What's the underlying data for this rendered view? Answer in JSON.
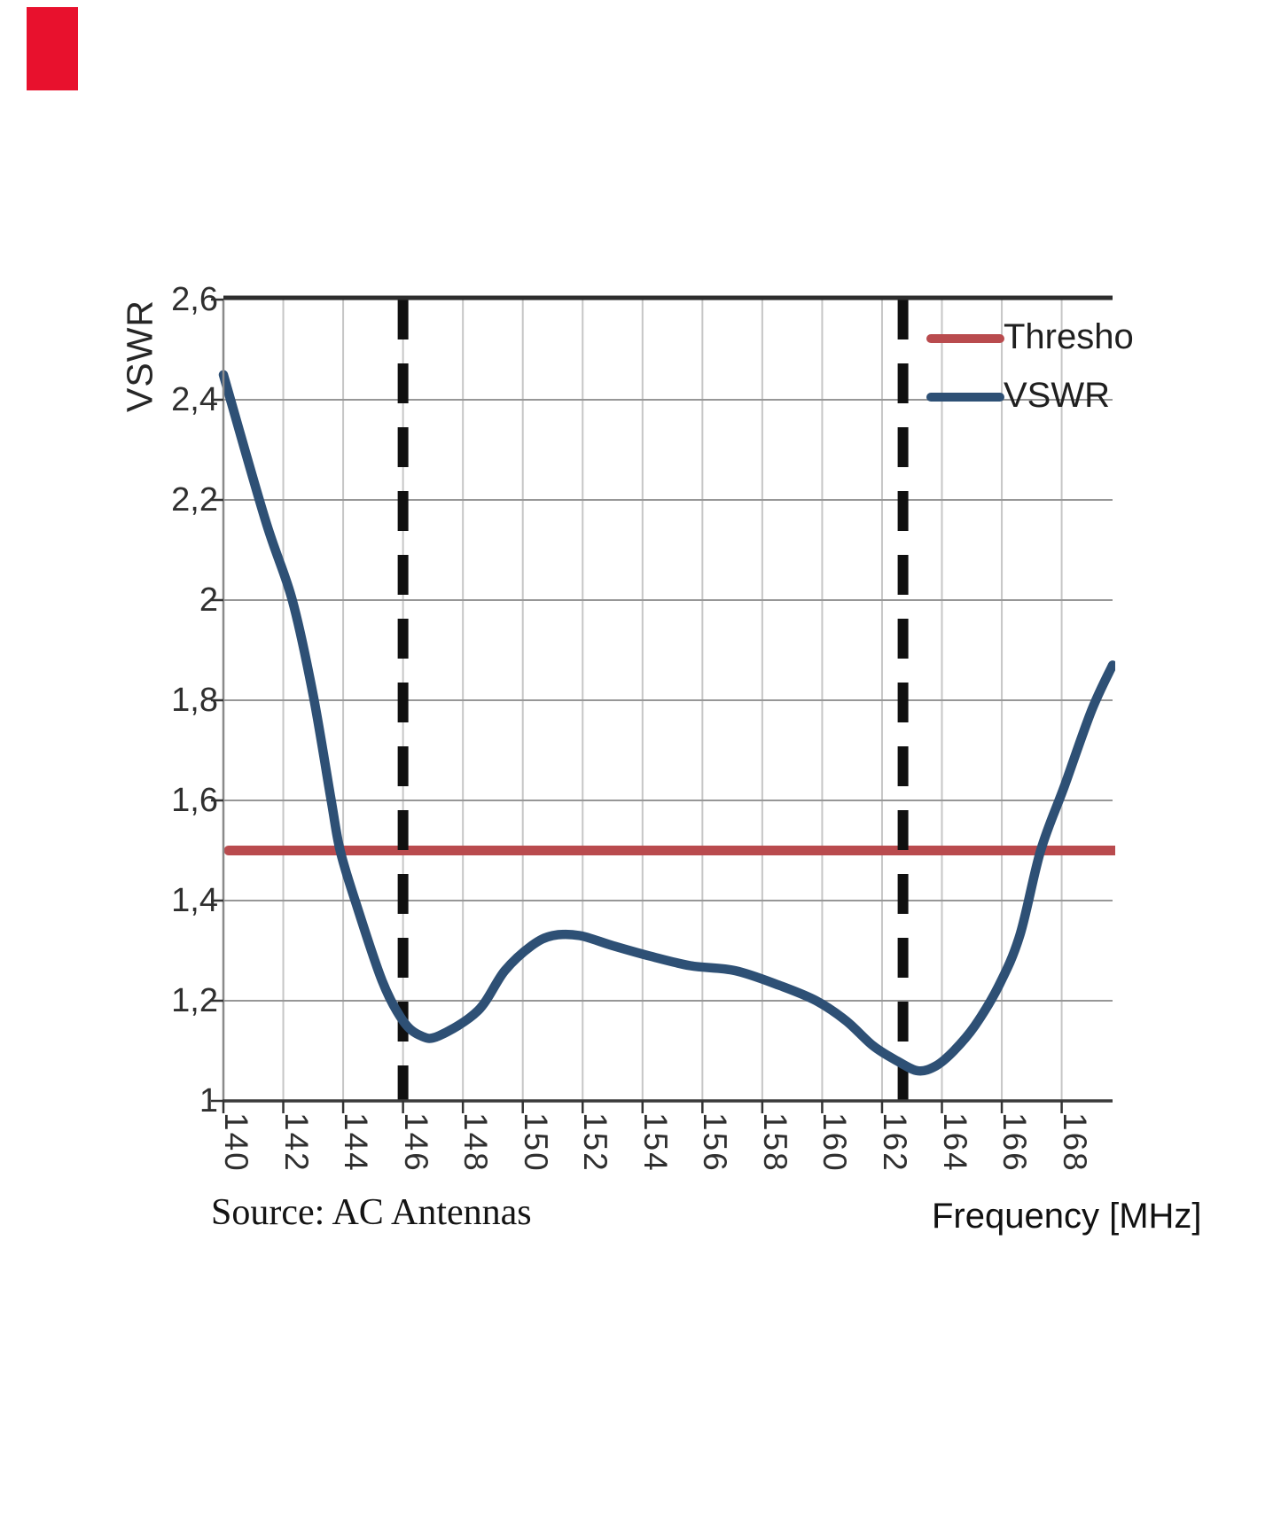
{
  "page": {
    "background": "#ffffff"
  },
  "corner_marker": {
    "color": "#e8112d"
  },
  "chart_data": {
    "type": "line",
    "title": "",
    "xlabel": "Frequency [MHz]",
    "ylabel": "VSWR",
    "source_note": "Source: AC Antennas",
    "xlim": [
      140,
      169.7
    ],
    "ylim": [
      1,
      2.6
    ],
    "grid": true,
    "x_ticks": [
      140,
      142,
      144,
      146,
      148,
      150,
      152,
      154,
      156,
      158,
      160,
      162,
      164,
      166,
      168
    ],
    "x_tick_labels": [
      "140",
      "142",
      "144",
      "146",
      "148",
      "150",
      "152",
      "154",
      "156",
      "158",
      "160",
      "162",
      "164",
      "166",
      "168"
    ],
    "y_ticks": [
      1,
      1.2,
      1.4,
      1.6,
      1.8,
      2,
      2.2,
      2.4,
      2.6
    ],
    "y_tick_labels": [
      "1",
      "1,2",
      "1,4",
      "1,6",
      "1,8",
      "2",
      "2,2",
      "2,4",
      "2,6"
    ],
    "legend": {
      "position": "top-right",
      "entries": [
        {
          "label": "Thresho",
          "color": "#b94b4e"
        },
        {
          "label": "VSWR",
          "color": "#2e5075"
        }
      ]
    },
    "threshold": {
      "name": "Threshold line",
      "value": 1.5,
      "color": "#b94b4e"
    },
    "band_markers_mhz": [
      146.0,
      162.7
    ],
    "series": [
      {
        "name": "VSWR",
        "color": "#2e5075",
        "points": [
          [
            140.0,
            2.45
          ],
          [
            141.4,
            2.16
          ],
          [
            142.3,
            2.0
          ],
          [
            143.0,
            1.81
          ],
          [
            143.6,
            1.6
          ],
          [
            143.9,
            1.5
          ],
          [
            144.4,
            1.4
          ],
          [
            145.3,
            1.24
          ],
          [
            146.0,
            1.16
          ],
          [
            146.6,
            1.13
          ],
          [
            147.2,
            1.13
          ],
          [
            148.5,
            1.18
          ],
          [
            149.4,
            1.26
          ],
          [
            150.3,
            1.31
          ],
          [
            151.0,
            1.33
          ],
          [
            151.9,
            1.33
          ],
          [
            153.0,
            1.31
          ],
          [
            154.2,
            1.29
          ],
          [
            155.6,
            1.27
          ],
          [
            157.1,
            1.26
          ],
          [
            158.6,
            1.23
          ],
          [
            159.8,
            1.2
          ],
          [
            160.8,
            1.16
          ],
          [
            161.7,
            1.11
          ],
          [
            162.5,
            1.08
          ],
          [
            163.2,
            1.06
          ],
          [
            163.8,
            1.07
          ],
          [
            164.4,
            1.1
          ],
          [
            165.1,
            1.15
          ],
          [
            165.9,
            1.23
          ],
          [
            166.6,
            1.33
          ],
          [
            167.3,
            1.5
          ],
          [
            168.1,
            1.63
          ],
          [
            169.0,
            1.78
          ],
          [
            169.7,
            1.87
          ]
        ]
      }
    ],
    "style": {
      "h_grid_color": "#979797",
      "v_grid_color": "#c6c6c6",
      "border_top_color": "#2d2d2d",
      "border_left_color": "#8a8a8a",
      "axis_bottom_color": "#3a3a3a",
      "marker_dash_color": "#101010",
      "tick_color": "#333333"
    }
  }
}
